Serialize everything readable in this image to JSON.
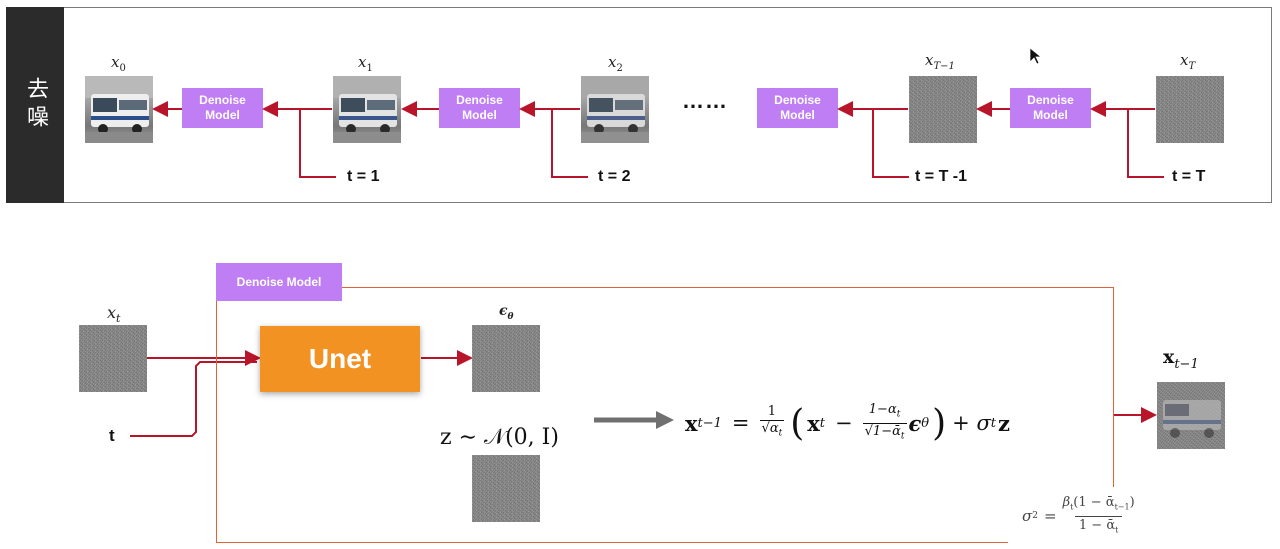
{
  "side_label": "去噪",
  "top_row": {
    "images": [
      {
        "label": "x",
        "sub": "0",
        "kind": "bus"
      },
      {
        "label": "x",
        "sub": "1",
        "kind": "bus"
      },
      {
        "label": "x",
        "sub": "2",
        "kind": "bus"
      },
      {
        "label": "x",
        "sub": "T−1",
        "kind": "noise"
      },
      {
        "label": "x",
        "sub": "T",
        "kind": "noise"
      }
    ],
    "model_boxes": [
      "Denoise\nModel",
      "Denoise\nModel",
      "Denoise\nModel",
      "Denoise\nModel"
    ],
    "timesteps": [
      "t = 1",
      "t = 2",
      "t = T -1",
      "t = T"
    ],
    "ellipsis": "……"
  },
  "detail": {
    "tab_label": "Denoise  Model",
    "input_label": {
      "var": "x",
      "sub": "t"
    },
    "t_label": "t",
    "unet_label": "Unet",
    "eps_label": {
      "var": "ϵ",
      "sub": "θ"
    },
    "z_label": "z ∼ 𝒩(0, I)",
    "output_label": {
      "var": "x",
      "sub": "t−1"
    },
    "update_formula": {
      "lhs": "x",
      "lhs_sub": "t−1",
      "eq": "=",
      "frac1_num": "1",
      "frac1_den": "√α",
      "frac1_den_sub": "t",
      "paren_x": "x",
      "paren_x_sub": "t",
      "minus": "−",
      "frac2_num": "1−α",
      "frac2_num_sub": "t",
      "frac2_den": "√1−ᾱ",
      "frac2_den_sub": "t",
      "eps": "ϵ",
      "eps_sub": "θ",
      "plus": "+ σ",
      "plus_sub": "t",
      "z": "z"
    },
    "sigma_formula": {
      "lhs": "σ",
      "lhs_sup": "2",
      "eq": "=",
      "num": "β",
      "num_sub": "t",
      "num_rest": "(1 − ᾱ",
      "num_rest_sub": "t−1",
      "num_close": ")",
      "den": "1 − ᾱ",
      "den_sub": "t"
    }
  },
  "colors": {
    "arrow": "#b8142a",
    "purple": "#c07ef5",
    "unet": "#f19223",
    "frame": "#e0623a",
    "dark_bar": "#2b2b2b"
  }
}
